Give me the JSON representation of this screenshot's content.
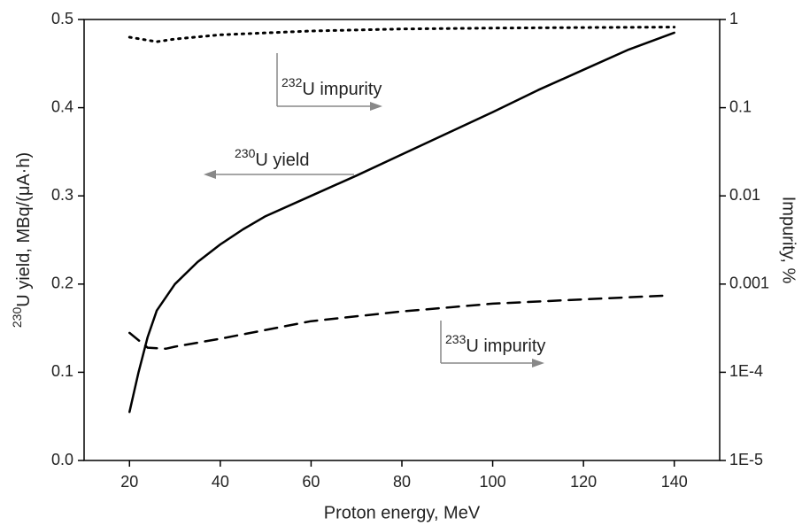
{
  "chart_data": {
    "type": "line",
    "x_label": "Proton energy, MeV",
    "y_label": {
      "sup": "230",
      "text": "U yield, MBq/(μA·h)"
    },
    "y2_label": "Impurity, %",
    "xlim": [
      10,
      150
    ],
    "xticks": [
      20,
      40,
      60,
      80,
      100,
      120,
      140
    ],
    "ylim": [
      0,
      0.5
    ],
    "yticks": [
      {
        "value": 0,
        "label": "0.0"
      },
      0.1,
      0.2,
      0.3,
      0.4,
      0.5
    ],
    "y2lim": [
      1e-05,
      1
    ],
    "y2log": true,
    "y2ticks": [
      {
        "value": 1e-05,
        "label": "1E-5"
      },
      {
        "value": 0.0001,
        "label": "1E-4"
      },
      0.001,
      0.01,
      0.1,
      1
    ],
    "series": [
      {
        "color": "#000000",
        "dash": "solid",
        "axis": "y",
        "x": [
          20,
          22,
          24,
          26,
          30,
          35,
          40,
          45,
          50,
          60,
          70,
          80,
          90,
          100,
          110,
          120,
          130,
          140
        ],
        "values": [
          0.055,
          0.1,
          0.14,
          0.17,
          0.2,
          0.225,
          0.245,
          0.262,
          0.277,
          0.3,
          0.323,
          0.347,
          0.371,
          0.395,
          0.42,
          0.443,
          0.466,
          0.485
        ]
      },
      {
        "color": "#000000",
        "dash": "dotted",
        "axis": "y2",
        "x": [
          20,
          26,
          30,
          40,
          60,
          80,
          100,
          120,
          140
        ],
        "values": [
          0.63,
          0.56,
          0.6,
          0.67,
          0.74,
          0.78,
          0.8,
          0.81,
          0.82
        ]
      },
      {
        "color": "#000000",
        "dash": "dashed",
        "axis": "y2",
        "x": [
          20,
          24,
          28,
          30,
          40,
          60,
          80,
          100,
          120,
          138
        ],
        "values": [
          0.00028,
          0.00019,
          0.000185,
          0.000195,
          0.00024,
          0.00038,
          0.00049,
          0.0006,
          0.00067,
          0.00074
        ]
      }
    ],
    "annotations": [
      {
        "sup": "232",
        "text": "U impurity"
      },
      {
        "sup": "230",
        "text": "U yield"
      },
      {
        "sup": "233",
        "text": "U impurity"
      }
    ]
  }
}
